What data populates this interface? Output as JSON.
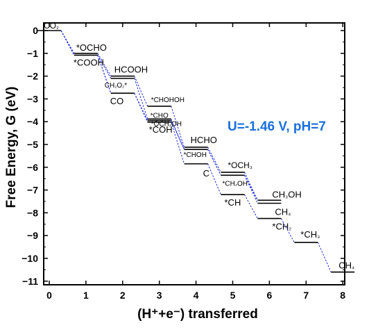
{
  "chart_data": {
    "type": "line",
    "title": "",
    "xlabel": "(H⁺+e⁻) transferred",
    "ylabel": "Free Energy, G (eV)",
    "xlim": [
      -0.3,
      8.3
    ],
    "ylim": [
      -11,
      0
    ],
    "x_ticks": [
      "0",
      "1",
      "2",
      "3",
      "4",
      "5",
      "6",
      "7",
      "8"
    ],
    "y_ticks": [
      "0",
      "−1",
      "−2",
      "−3",
      "−4",
      "−5",
      "−6",
      "−7",
      "−8",
      "−9",
      "−10",
      "−11"
    ],
    "annotation": "U=-1.46 V, pH=7",
    "annotation_color": "#1a6fdc",
    "level_color": "#000000",
    "path_color": "#1f2bd6",
    "levels": [
      {
        "x": 0,
        "G": 0.0,
        "label": [
          "CO",
          "₂"
        ]
      },
      {
        "x": 1,
        "G": -1.0,
        "label": [
          "*OCHO"
        ]
      },
      {
        "x": 1,
        "G": -1.08,
        "label": [
          "*COOH"
        ]
      },
      {
        "x": 2,
        "G": -2.0,
        "label": [
          "HCOOH"
        ]
      },
      {
        "x": 2,
        "G": -2.1,
        "label": [
          "CH",
          "₂",
          "O",
          "₂",
          "*"
        ]
      },
      {
        "x": 2,
        "G": -2.75,
        "label": [
          "CO"
        ]
      },
      {
        "x": 3,
        "G": -3.32,
        "label": [
          "*CHOHOH"
        ]
      },
      {
        "x": 3,
        "G": -3.88,
        "label": [
          "*OCH",
          "₂",
          "OH"
        ]
      },
      {
        "x": 3,
        "G": -3.95,
        "label": [
          "*CHO"
        ]
      },
      {
        "x": 3,
        "G": -4.02,
        "label": [
          "*COH"
        ]
      },
      {
        "x": 4,
        "G": -5.12,
        "label": [
          "HCHO"
        ]
      },
      {
        "x": 4,
        "G": -5.22,
        "label": [
          "*CHOH"
        ]
      },
      {
        "x": 4,
        "G": -5.85,
        "label": [
          "C"
        ]
      },
      {
        "x": 5,
        "G": -6.22,
        "label": [
          "*OCH",
          "₃"
        ]
      },
      {
        "x": 5,
        "G": -6.35,
        "label": [
          "*CH",
          "₂",
          "OH"
        ]
      },
      {
        "x": 5,
        "G": -7.2,
        "label": [
          "*CH"
        ]
      },
      {
        "x": 6,
        "G": -7.45,
        "label": [
          "CH",
          "₃",
          "OH"
        ]
      },
      {
        "x": 6,
        "G": -7.58,
        "label": [
          "CH",
          "₄"
        ]
      },
      {
        "x": 6,
        "G": -8.25,
        "label": [
          "*CH",
          "₂"
        ]
      },
      {
        "x": 7,
        "G": -9.3,
        "label": [
          "*CH",
          "₃"
        ]
      },
      {
        "x": 8,
        "G": -10.6,
        "label": [
          "CH",
          "₄"
        ]
      }
    ],
    "pathways": [
      [
        [
          0,
          0.0
        ],
        [
          1,
          -1.0
        ],
        [
          2,
          -2.0
        ],
        [
          3,
          -3.32
        ],
        [
          4,
          -5.12
        ],
        [
          5,
          -6.22
        ],
        [
          6,
          -7.45
        ]
      ],
      [
        [
          0,
          0.0
        ],
        [
          1,
          -1.08
        ],
        [
          2,
          -2.1
        ],
        [
          3,
          -3.88
        ],
        [
          4,
          -5.22
        ],
        [
          5,
          -6.35
        ],
        [
          6,
          -7.58
        ]
      ],
      [
        [
          0,
          0.0
        ],
        [
          1,
          -1.08
        ],
        [
          2,
          -2.75
        ],
        [
          3,
          -3.95
        ],
        [
          4,
          -5.22
        ],
        [
          5,
          -6.35
        ],
        [
          6,
          -7.45
        ]
      ],
      [
        [
          0,
          0.0
        ],
        [
          1,
          -1.08
        ],
        [
          2,
          -2.75
        ],
        [
          3,
          -4.02
        ],
        [
          4,
          -5.85
        ],
        [
          5,
          -7.2
        ],
        [
          6,
          -8.25
        ],
        [
          7,
          -9.3
        ],
        [
          8,
          -10.6
        ]
      ]
    ]
  }
}
